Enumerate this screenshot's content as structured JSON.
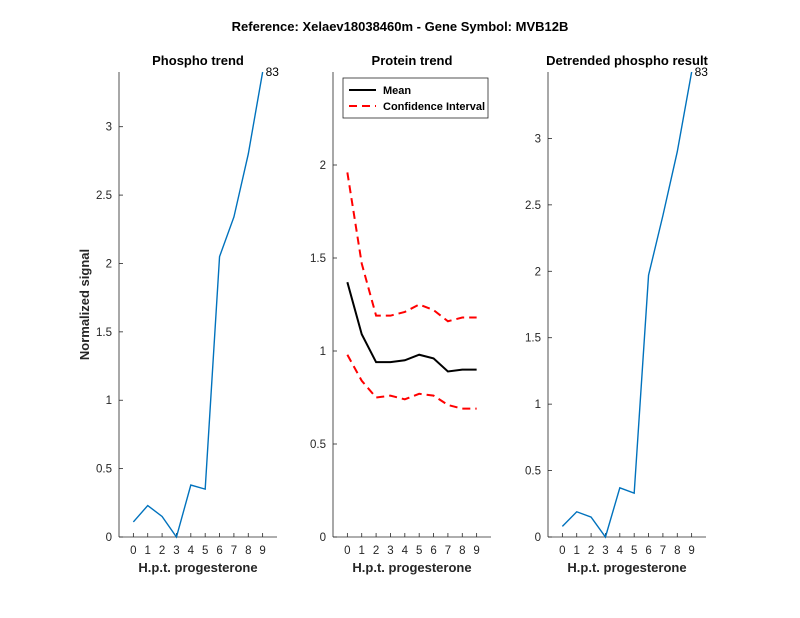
{
  "figure_title": "Reference:  Xelaev18038460m - Gene Symbol:  MVB12B",
  "colors": {
    "series_blue": "#0072BD",
    "mean": "#000000",
    "ci": "#FF0000",
    "axis": "#262626"
  },
  "chart_data": [
    {
      "type": "line",
      "title": "Phospho trend",
      "xlabel": "H.p.t. progesterone",
      "ylabel": "Normalized signal",
      "xlim": [
        -1,
        10
      ],
      "ylim": [
        0,
        3.4
      ],
      "xticks": [
        0,
        1,
        2,
        3,
        4,
        5,
        6,
        7,
        8,
        9
      ],
      "yticks": [
        0,
        0.5,
        1,
        1.5,
        2,
        2.5,
        3
      ],
      "ytick_labels": [
        "0",
        "0.5",
        "1",
        "1.5",
        "2",
        "2.5",
        "3"
      ],
      "series": [
        {
          "name": "Phospho",
          "x": [
            0,
            1,
            2,
            3,
            4,
            5,
            6,
            7,
            8,
            9
          ],
          "values": [
            0.11,
            0.23,
            0.15,
            0.0,
            0.38,
            0.35,
            2.05,
            2.34,
            2.8,
            3.4
          ]
        }
      ],
      "annotation": {
        "x": 9,
        "y": 3.4,
        "text": "83"
      }
    },
    {
      "type": "line",
      "title": "Protein trend",
      "xlabel": "H.p.t. progesterone",
      "ylabel": "",
      "xlim": [
        -1,
        10
      ],
      "ylim": [
        0,
        2.5
      ],
      "xticks": [
        0,
        1,
        2,
        3,
        4,
        5,
        6,
        7,
        8,
        9
      ],
      "yticks": [
        0,
        0.5,
        1,
        1.5,
        2
      ],
      "ytick_labels": [
        "0",
        "0.5",
        "1",
        "1.5",
        "2"
      ],
      "legend": {
        "position": "top-left",
        "entries": [
          "Mean",
          "Confidence Interval"
        ]
      },
      "series": [
        {
          "name": "Mean",
          "x": [
            0,
            1,
            2,
            3,
            4,
            5,
            6,
            7,
            8,
            9
          ],
          "values": [
            1.37,
            1.09,
            0.94,
            0.94,
            0.95,
            0.98,
            0.96,
            0.89,
            0.9,
            0.9
          ]
        },
        {
          "name": "CI upper",
          "x": [
            0,
            1,
            2,
            3,
            4,
            5,
            6,
            7,
            8,
            9
          ],
          "values": [
            1.96,
            1.47,
            1.19,
            1.19,
            1.21,
            1.25,
            1.22,
            1.16,
            1.18,
            1.18
          ]
        },
        {
          "name": "CI lower",
          "x": [
            0,
            1,
            2,
            3,
            4,
            5,
            6,
            7,
            8,
            9
          ],
          "values": [
            0.98,
            0.84,
            0.75,
            0.76,
            0.74,
            0.77,
            0.76,
            0.71,
            0.69,
            0.69
          ]
        }
      ]
    },
    {
      "type": "line",
      "title": "Detrended phospho result",
      "xlabel": "H.p.t. progesterone",
      "ylabel": "",
      "xlim": [
        -1,
        10
      ],
      "ylim": [
        0,
        3.5
      ],
      "xticks": [
        0,
        1,
        2,
        3,
        4,
        5,
        6,
        7,
        8,
        9
      ],
      "yticks": [
        0,
        0.5,
        1,
        1.5,
        2,
        2.5,
        3
      ],
      "ytick_labels": [
        "0",
        "0.5",
        "1",
        "1.5",
        "2",
        "2.5",
        "3"
      ],
      "series": [
        {
          "name": "Detrended",
          "x": [
            0,
            1,
            2,
            3,
            4,
            5,
            6,
            7,
            8,
            9
          ],
          "values": [
            0.08,
            0.19,
            0.15,
            0.0,
            0.37,
            0.33,
            1.97,
            2.42,
            2.9,
            3.5
          ]
        }
      ],
      "annotation": {
        "x": 9,
        "y": 3.5,
        "text": "83"
      }
    }
  ]
}
